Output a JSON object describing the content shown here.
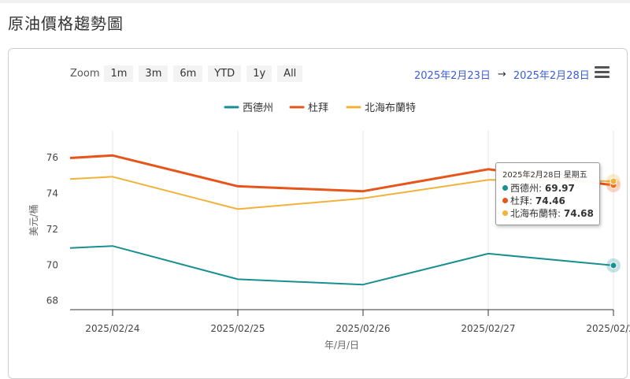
{
  "page": {
    "title": "原油價格趨勢圖"
  },
  "zoom": {
    "label": "Zoom",
    "buttons": [
      "1m",
      "3m",
      "6m",
      "YTD",
      "1y",
      "All"
    ]
  },
  "range": {
    "from": "2025年2月23日",
    "arrow": "→",
    "to": "2025年2月28日"
  },
  "menu": {
    "icon": "hamburger-menu-icon"
  },
  "chart_data": {
    "type": "line",
    "x": [
      "2025/02/24",
      "2025/02/25",
      "2025/02/26",
      "2025/02/27",
      "2025/02/28"
    ],
    "x_start_value": "2025/02/23 18:00",
    "xlabel": "年/月/日",
    "ylabel": "美元/桶",
    "ylim": [
      67.5,
      77.5
    ],
    "yticks": [
      68,
      70,
      72,
      74,
      76
    ],
    "grid": "vertical",
    "legend": "top-center",
    "series": [
      {
        "name": "西德州",
        "color": "#1a8f91",
        "start": 70.95,
        "values": [
          71.06,
          69.2,
          68.9,
          70.63,
          69.97
        ]
      },
      {
        "name": "杜拜",
        "color": "#e6561a",
        "start": 75.98,
        "values": [
          76.12,
          74.4,
          74.12,
          75.35,
          74.46
        ]
      },
      {
        "name": "北海布蘭特",
        "color": "#f0b23a",
        "start": 74.8,
        "values": [
          74.93,
          73.12,
          73.72,
          74.76,
          74.68
        ]
      }
    ]
  },
  "tooltip": {
    "date": "2025年2月28日 星期五",
    "rows": [
      {
        "name": "西德州",
        "value": "69.97",
        "color": "#1a8f91"
      },
      {
        "name": "杜拜",
        "value": "74.46",
        "color": "#e6561a"
      },
      {
        "name": "北海布蘭特",
        "value": "74.68",
        "color": "#f0b23a"
      }
    ]
  }
}
